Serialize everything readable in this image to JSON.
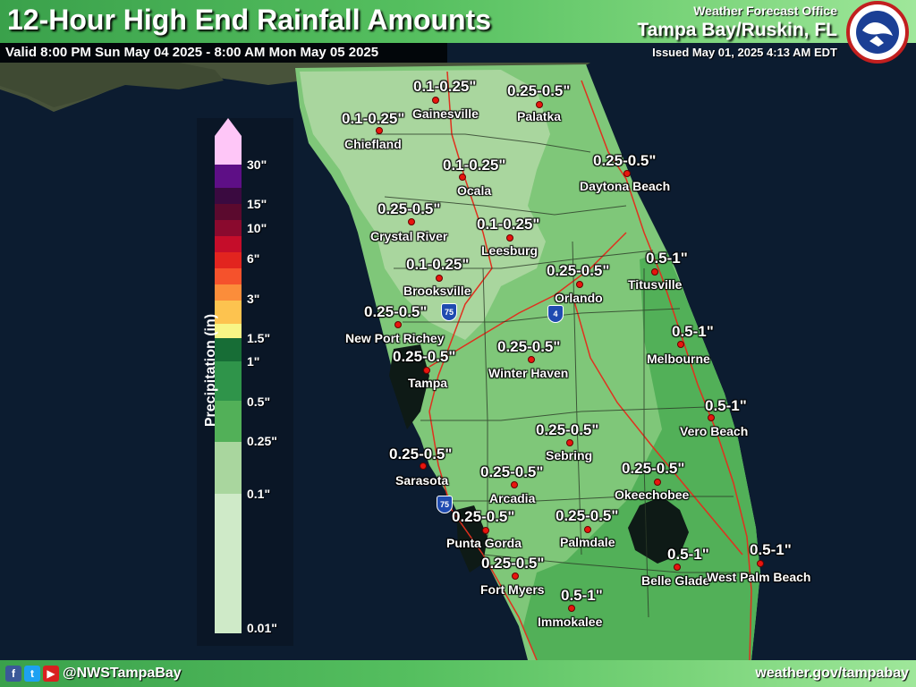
{
  "header": {
    "title": "12-Hour High End Rainfall Amounts",
    "valid": "Valid 8:00 PM Sun May 04 2025 - 8:00 AM Mon May 05 2025",
    "wfo_label": "Weather Forecast Office",
    "office": "Tampa Bay/Ruskin, FL",
    "issued": "Issued May 01, 2025 4:13 AM EDT"
  },
  "footer": {
    "handle": "@NWSTampaBay",
    "website": "weather.gov/tampabay",
    "social_icons": [
      "facebook-icon",
      "twitter-icon",
      "youtube-icon"
    ]
  },
  "legend": {
    "title": "Precipitation (in)",
    "ticks": [
      "30\"",
      "15\"",
      "10\"",
      "6\"",
      "3\"",
      "1.5\"",
      "1\"",
      "0.5\"",
      "0.25\"",
      "0.1\"",
      "0.01\""
    ],
    "colors": [
      "#cfeac8",
      "#a9d69e",
      "#7fc779",
      "#52b058",
      "#2f944a",
      "#176d36",
      "#f7f586",
      "#fdc34f",
      "#fb8d3a",
      "#f5522c",
      "#e2241f",
      "#c50d2a",
      "#8a0a2e",
      "#5b0a2e",
      "#3a0a40",
      "#5e0f86",
      "#fec6f7"
    ]
  },
  "map": {
    "colors": {
      "ocean": "#0c1c30",
      "land_outside": "#48533a",
      "amount_0_1_to_0_25": "#a9d69e",
      "amount_0_25_to_0_5": "#7fc779",
      "amount_0_5_to_1": "#52b058",
      "road": "#e0301e",
      "county_line": "#2b3a27",
      "city_dot": "#e8150e"
    },
    "shields": [
      {
        "name": "i75-north-shield",
        "label": "75"
      },
      {
        "name": "i4-shield",
        "label": "4"
      },
      {
        "name": "i75-south-shield",
        "label": "75"
      }
    ],
    "cities": [
      {
        "name": "Gainesville",
        "amount": "0.1-0.25\""
      },
      {
        "name": "Palatka",
        "amount": "0.25-0.5\""
      },
      {
        "name": "Chiefland",
        "amount": "0.1-0.25\""
      },
      {
        "name": "Ocala",
        "amount": "0.1-0.25\""
      },
      {
        "name": "Daytona Beach",
        "amount": "0.25-0.5\""
      },
      {
        "name": "Crystal River",
        "amount": "0.25-0.5\""
      },
      {
        "name": "Leesburg",
        "amount": "0.1-0.25\""
      },
      {
        "name": "Brooksville",
        "amount": "0.1-0.25\""
      },
      {
        "name": "Orlando",
        "amount": "0.25-0.5\""
      },
      {
        "name": "Titusville",
        "amount": "0.5-1\""
      },
      {
        "name": "New Port Richey",
        "amount": "0.25-0.5\""
      },
      {
        "name": "Melbourne",
        "amount": "0.5-1\""
      },
      {
        "name": "Tampa",
        "amount": "0.25-0.5\""
      },
      {
        "name": "Winter Haven",
        "amount": "0.25-0.5\""
      },
      {
        "name": "Vero Beach",
        "amount": "0.5-1\""
      },
      {
        "name": "Sebring",
        "amount": "0.25-0.5\""
      },
      {
        "name": "Sarasota",
        "amount": "0.25-0.5\""
      },
      {
        "name": "Arcadia",
        "amount": "0.25-0.5\""
      },
      {
        "name": "Okeechobee",
        "amount": "0.25-0.5\""
      },
      {
        "name": "Punta Gorda",
        "amount": "0.25-0.5\""
      },
      {
        "name": "Palmdale",
        "amount": "0.25-0.5\""
      },
      {
        "name": "Belle Glade",
        "amount": "0.5-1\""
      },
      {
        "name": "West Palm Beach",
        "amount": "0.5-1\""
      },
      {
        "name": "Fort Myers",
        "amount": "0.25-0.5\""
      },
      {
        "name": "Immokalee",
        "amount": "0.5-1\""
      }
    ]
  }
}
